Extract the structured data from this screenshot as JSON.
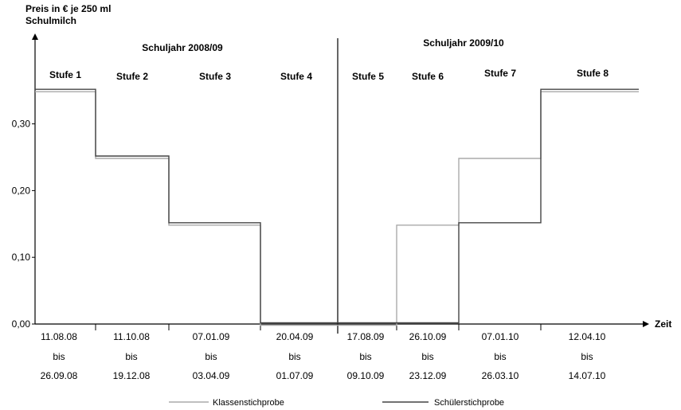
{
  "chart_data": {
    "type": "line",
    "step": true,
    "ylabel_line1": "Preis in € je 250 ml",
    "ylabel_line2": "Schulmilch",
    "xlabel": "Zeit",
    "ylim": [
      0,
      0.4
    ],
    "yticks": [
      "0,00",
      "0,10",
      "0,20",
      "0,30"
    ],
    "school_years": [
      "Schuljahr 2008/09",
      "Schuljahr 2009/10"
    ],
    "stages": [
      "Stufe 1",
      "Stufe 2",
      "Stufe 3",
      "Stufe 4",
      "Stufe 5",
      "Stufe 6",
      "Stufe 7",
      "Stufe 8"
    ],
    "periods": [
      {
        "from": "11.08.08",
        "bis": "bis",
        "to": "26.09.08"
      },
      {
        "from": "11.10.08",
        "bis": "bis",
        "to": "19.12.08"
      },
      {
        "from": "07.01.09",
        "bis": "bis",
        "to": "03.04.09"
      },
      {
        "from": "20.04.09",
        "bis": "bis",
        "to": "01.07.09"
      },
      {
        "from": "17.08.09",
        "bis": "bis",
        "to": "09.10.09"
      },
      {
        "from": "26.10.09",
        "bis": "bis",
        "to": "23.12.09"
      },
      {
        "from": "07.01.10",
        "bis": "bis",
        "to": "26.03.10"
      },
      {
        "from": "12.04.10",
        "bis": "bis",
        "to": "14.07.10"
      }
    ],
    "series": [
      {
        "name": "Klassenstichprobe",
        "color": "#aaaaaa",
        "values": [
          0.35,
          0.25,
          0.15,
          0.0,
          0.0,
          0.15,
          0.25,
          0.35
        ]
      },
      {
        "name": "Schülerstichprobe",
        "color": "#444444",
        "values": [
          0.35,
          0.25,
          0.15,
          0.0,
          0.0,
          0.0,
          0.15,
          0.35
        ]
      }
    ],
    "grid": false,
    "legend_position": "bottom"
  }
}
